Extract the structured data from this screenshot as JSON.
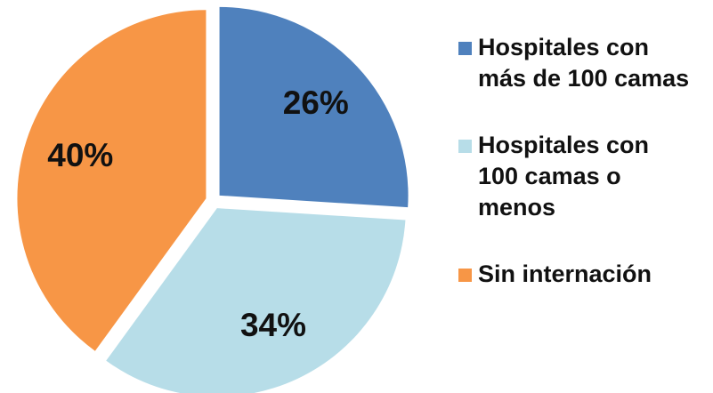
{
  "chart_data": {
    "type": "pie",
    "categories": [
      "Hospitales con más de 100 camas",
      "Hospitales con 100 camas o menos",
      "Sin internación"
    ],
    "values": [
      26,
      34,
      40
    ],
    "value_labels": [
      "26%",
      "34%",
      "40%"
    ],
    "colors": [
      "#4f81bd",
      "#b7dde8",
      "#f79646"
    ],
    "legend": "right"
  }
}
